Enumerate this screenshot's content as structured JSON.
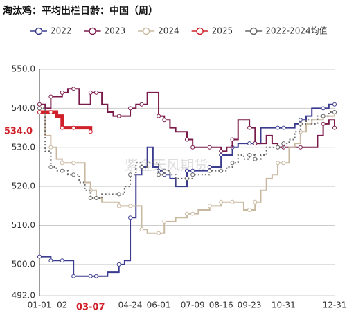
{
  "chart_data": {
    "type": "step-line",
    "title": "淘汰鸡：平均出栏日龄：中国（周）",
    "watermark": "紫金天风期货",
    "categories": [
      "01-01",
      null,
      null,
      null,
      "02",
      null,
      null,
      null,
      null,
      "03-07",
      null,
      null,
      null,
      null,
      null,
      null,
      "04-24",
      null,
      null,
      null,
      null,
      "06-01",
      null,
      null,
      null,
      null,
      null,
      "07-09",
      null,
      null,
      null,
      null,
      "08-16",
      null,
      null,
      null,
      null,
      "09-23",
      null,
      null,
      null,
      null,
      null,
      "10-31",
      null,
      null,
      null,
      null,
      null,
      null,
      null,
      null,
      "12-31"
    ],
    "series": [
      {
        "name": "2022",
        "color": "#3b3b8f",
        "dash": false,
        "width": 2,
        "values": [
          502,
          502,
          501,
          501,
          501,
          501,
          497,
          497,
          497,
          497,
          497,
          497,
          498,
          498,
          500,
          501,
          512,
          523,
          525,
          530,
          525,
          524,
          523,
          522,
          520,
          520,
          524,
          524,
          524,
          524,
          525,
          525,
          528,
          528,
          530,
          531,
          531,
          531,
          531,
          535,
          535,
          535,
          535,
          535,
          535,
          536,
          537,
          538,
          540,
          540,
          540,
          541,
          541
        ]
      },
      {
        "name": "2023",
        "color": "#7a1a4a",
        "dash": false,
        "width": 2,
        "values": [
          541,
          540,
          543,
          543,
          544,
          545,
          545,
          541,
          541,
          544,
          544,
          541,
          539,
          538,
          538,
          538,
          540,
          541,
          541,
          544,
          544,
          538,
          537,
          535,
          534,
          534,
          532,
          530,
          530,
          530,
          530,
          530,
          529,
          530,
          532,
          537,
          537,
          535,
          531,
          531,
          533,
          531,
          530,
          530,
          530,
          530,
          530,
          530,
          530,
          533,
          536,
          537,
          535
        ]
      },
      {
        "name": "2024",
        "color": "#c8b8a0",
        "dash": false,
        "width": 2,
        "values": [
          539,
          533,
          530,
          527,
          526,
          526,
          526,
          526,
          521,
          519,
          517,
          516,
          516,
          516,
          515,
          515,
          515,
          515,
          509,
          508,
          508,
          508,
          511,
          511,
          512,
          512,
          513,
          513,
          514,
          514,
          515,
          515,
          516,
          516,
          516,
          516,
          514,
          514,
          516,
          519,
          522,
          523,
          526,
          526,
          530,
          531,
          534,
          536,
          537,
          537,
          538,
          538,
          539
        ]
      },
      {
        "name": "2025",
        "color": "#d0202a",
        "dash": false,
        "width": 5,
        "values": [
          539,
          539,
          539,
          538,
          535,
          535,
          535,
          535,
          535,
          534,
          null,
          null,
          null,
          null,
          null,
          null,
          null,
          null,
          null,
          null,
          null,
          null,
          null,
          null,
          null,
          null,
          null,
          null,
          null,
          null,
          null,
          null,
          null,
          null,
          null,
          null,
          null,
          null,
          null,
          null,
          null,
          null,
          null,
          null,
          null,
          null,
          null,
          null,
          null,
          null,
          null,
          null,
          null
        ]
      },
      {
        "name": "2022-2024均值",
        "color": "#666666",
        "dash": true,
        "width": 2,
        "values": [
          540,
          529,
          525,
          524,
          524,
          523,
          523,
          521,
          519,
          517,
          517,
          518,
          518,
          518,
          518,
          520,
          523,
          526,
          525,
          526,
          526,
          523,
          524,
          523,
          522,
          522,
          522,
          523,
          523,
          523,
          524,
          524,
          524,
          525,
          526,
          528,
          527,
          528,
          527,
          528,
          530,
          530,
          530,
          531,
          532,
          534,
          536,
          537,
          536,
          538,
          538,
          539,
          539
        ]
      }
    ],
    "ylim": [
      492,
      550
    ],
    "yticks": [
      {
        "value": 492,
        "label": "492.0"
      },
      {
        "value": 500,
        "label": "500.0"
      },
      {
        "value": 510,
        "label": "510.0"
      },
      {
        "value": 520,
        "label": "520.0"
      },
      {
        "value": 530,
        "label": "530.0"
      },
      {
        "value": 540,
        "label": "540.0"
      },
      {
        "value": 550,
        "label": "550.0"
      }
    ],
    "y_marker": {
      "value": 534,
      "label": "534.0"
    },
    "grid": true
  }
}
